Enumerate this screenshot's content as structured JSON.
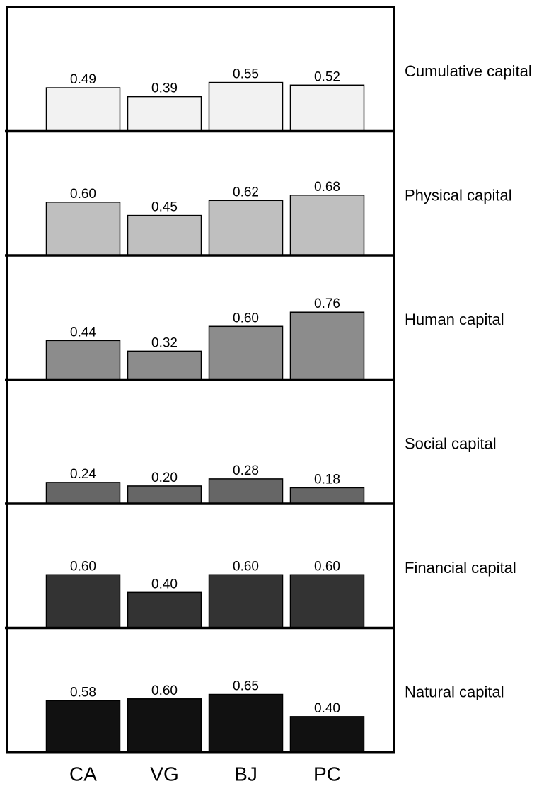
{
  "chart_data": {
    "type": "bar",
    "categories": [
      "CA",
      "VG",
      "BJ",
      "PC"
    ],
    "ylim": [
      0,
      1.4
    ],
    "series": [
      {
        "name": "Cumulative capital",
        "color": "#f2f2f2",
        "values": [
          0.49,
          0.39,
          0.55,
          0.52
        ],
        "value_labels": [
          "0.49",
          "0.39",
          "0.55",
          "0.52"
        ]
      },
      {
        "name": "Physical capital",
        "color": "#bfbfbf",
        "values": [
          0.6,
          0.45,
          0.62,
          0.68
        ],
        "value_labels": [
          "0.60",
          "0.45",
          "0.62",
          "0.68"
        ]
      },
      {
        "name": "Human capital",
        "color": "#8c8c8c",
        "values": [
          0.44,
          0.32,
          0.6,
          0.76
        ],
        "value_labels": [
          "0.44",
          "0.32",
          "0.60",
          "0.76"
        ]
      },
      {
        "name": "Social capital",
        "color": "#666666",
        "values": [
          0.24,
          0.2,
          0.28,
          0.18
        ],
        "value_labels": [
          "0.24",
          "0.20",
          "0.28",
          "0.18"
        ]
      },
      {
        "name": "Financial capital",
        "color": "#333333",
        "values": [
          0.6,
          0.4,
          0.6,
          0.6
        ],
        "value_labels": [
          "0.60",
          "0.40",
          "0.60",
          "0.60"
        ]
      },
      {
        "name": "Natural capital",
        "color": "#111111",
        "values": [
          0.58,
          0.6,
          0.65,
          0.4
        ],
        "value_labels": [
          "0.58",
          "0.60",
          "0.65",
          "0.40"
        ]
      }
    ]
  }
}
